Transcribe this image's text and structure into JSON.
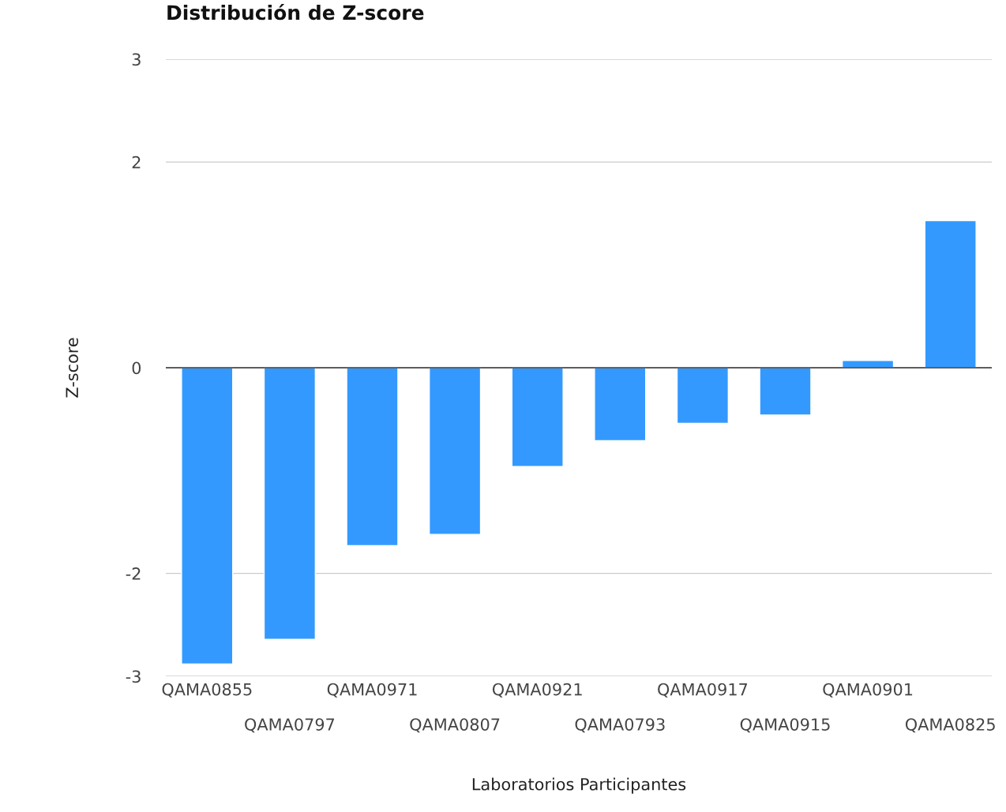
{
  "chart_data": {
    "type": "bar",
    "title": "Distribución de Z-score",
    "xlabel": "Laboratorios Participantes",
    "ylabel": "Z-score",
    "categories": [
      "QAMA0855",
      "QAMA0797",
      "QAMA0971",
      "QAMA0807",
      "QAMA0921",
      "QAMA0793",
      "QAMA0917",
      "QAMA0915",
      "QAMA0901",
      "QAMA0825"
    ],
    "values": [
      -2.88,
      -2.64,
      -1.73,
      -1.62,
      -0.96,
      -0.71,
      -0.54,
      -0.46,
      0.07,
      1.43
    ],
    "color": "#3399ff",
    "ylim": [
      -3,
      3
    ],
    "yticks": [
      -3,
      -2,
      0,
      2,
      3
    ],
    "grid": "y",
    "legend": false
  }
}
